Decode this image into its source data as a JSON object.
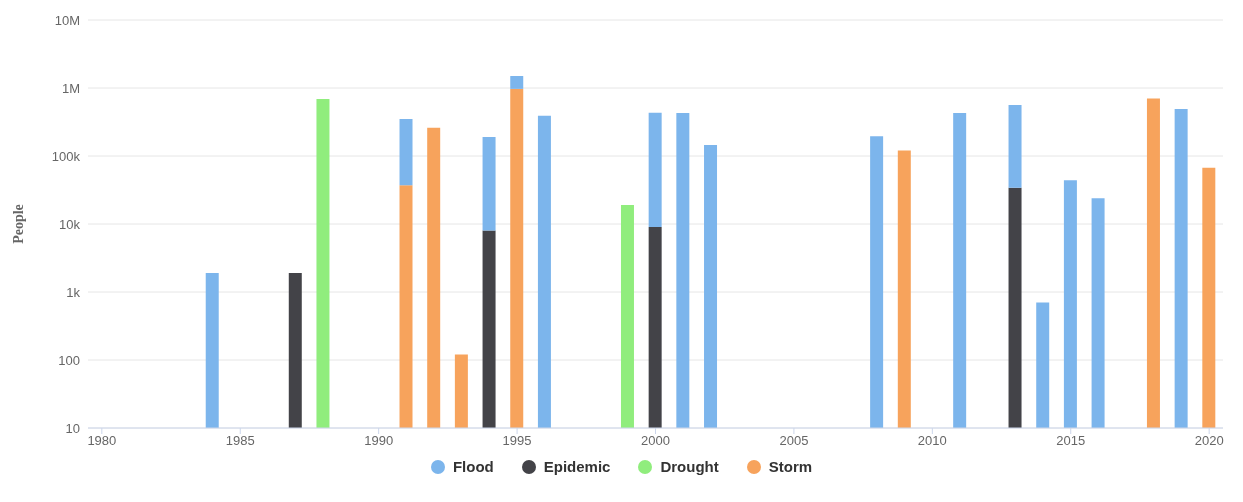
{
  "chart_data": {
    "type": "bar",
    "stacked": true,
    "log": "y",
    "ylabel": "People",
    "x": [
      1984,
      1987,
      1988,
      1991,
      1992,
      1993,
      1994,
      1995,
      1996,
      1999,
      2000,
      2001,
      2002,
      2008,
      2009,
      2011,
      2013,
      2014,
      2015,
      2016,
      2018,
      2019,
      2020
    ],
    "series": [
      {
        "name": "Storm",
        "color": "#f7a35c",
        "values": [
          null,
          null,
          null,
          37000,
          260000,
          120,
          null,
          970000,
          null,
          null,
          null,
          null,
          null,
          null,
          120000,
          null,
          null,
          null,
          null,
          null,
          700000,
          null,
          67000
        ]
      },
      {
        "name": "Drought",
        "color": "#90ed7d",
        "values": [
          null,
          null,
          690000,
          null,
          null,
          null,
          null,
          null,
          null,
          19000,
          null,
          null,
          null,
          null,
          null,
          null,
          null,
          null,
          null,
          null,
          null,
          null,
          null
        ]
      },
      {
        "name": "Epidemic",
        "color": "#434348",
        "values": [
          null,
          1900,
          null,
          null,
          null,
          null,
          8000,
          null,
          null,
          null,
          9000,
          null,
          null,
          null,
          null,
          null,
          34000,
          null,
          null,
          null,
          null,
          null,
          null
        ]
      },
      {
        "name": "Flood",
        "color": "#7cb5ec",
        "values": [
          1900,
          null,
          null,
          313000,
          null,
          null,
          182000,
          530000,
          390000,
          null,
          424000,
          430000,
          145000,
          195000,
          null,
          430000,
          526000,
          700,
          44000,
          24000,
          null,
          490000,
          null
        ]
      }
    ],
    "xlim": [
      1979.5,
      2020.5
    ],
    "xticks": [
      1980,
      1985,
      1990,
      1995,
      2000,
      2005,
      2010,
      2015,
      2020
    ],
    "ylim": [
      10,
      10000000
    ],
    "yticks": [
      {
        "value": 10,
        "label": "10"
      },
      {
        "value": 100,
        "label": "100"
      },
      {
        "value": 1000,
        "label": "1k"
      },
      {
        "value": 10000,
        "label": "10k"
      },
      {
        "value": 100000,
        "label": "100k"
      },
      {
        "value": 1000000,
        "label": "1M"
      },
      {
        "value": 10000000,
        "label": "10M"
      }
    ],
    "grid": "y",
    "legend": "bottom"
  }
}
